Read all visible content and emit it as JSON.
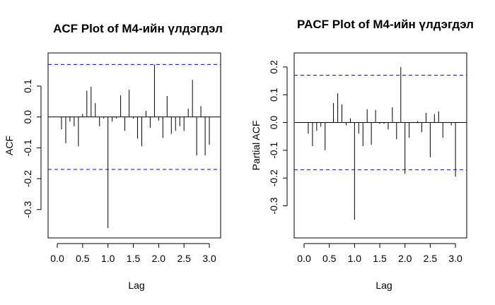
{
  "chart_data": [
    {
      "type": "bar",
      "subtype": "acf",
      "title": "ACF Plot of M4-ийн үлдэгдэл",
      "xlabel": "Lag",
      "ylabel": "ACF",
      "xlim": [
        0,
        3.083
      ],
      "ylim": [
        -0.36,
        0.18
      ],
      "xticks": [
        "0.0",
        "0.5",
        "1.0",
        "1.5",
        "2.0",
        "2.5",
        "3.0"
      ],
      "yticks": [
        "-0.3",
        "-0.2",
        "-0.1",
        "0.0",
        "0.1"
      ],
      "ci": 0.17,
      "ci_color": "#0000ff",
      "x": [
        0.083,
        0.167,
        0.25,
        0.333,
        0.417,
        0.5,
        0.583,
        0.667,
        0.75,
        0.833,
        0.917,
        1.0,
        1.083,
        1.167,
        1.25,
        1.333,
        1.417,
        1.5,
        1.583,
        1.667,
        1.75,
        1.833,
        1.917,
        2.0,
        2.083,
        2.167,
        2.25,
        2.333,
        2.417,
        2.5,
        2.583,
        2.667,
        2.75,
        2.833,
        2.917,
        3.0
      ],
      "values": [
        -0.04,
        -0.085,
        -0.015,
        -0.03,
        -0.095,
        0.01,
        0.085,
        0.098,
        0.045,
        -0.03,
        -0.005,
        -0.36,
        -0.015,
        -0.005,
        0.07,
        -0.045,
        0.088,
        -0.005,
        -0.07,
        -0.095,
        0.02,
        -0.035,
        0.17,
        -0.012,
        -0.068,
        0.068,
        -0.055,
        -0.045,
        -0.03,
        -0.045,
        0.027,
        0.12,
        -0.125,
        0.035,
        -0.125,
        -0.09
      ]
    },
    {
      "type": "bar",
      "subtype": "pacf",
      "title": "PACF Plot of M4-ийн үлдэгдэл",
      "xlabel": "Lag",
      "ylabel": "Partial ACF",
      "xlim": [
        0,
        3.083
      ],
      "ylim": [
        -0.38,
        0.22
      ],
      "xticks": [
        "0.0",
        "0.5",
        "1.0",
        "1.5",
        "2.0",
        "2.5",
        "3.0"
      ],
      "yticks": [
        "-0.3",
        "-0.2",
        "-0.1",
        "0.0",
        "0.1",
        "0.2"
      ],
      "ci": 0.17,
      "ci_color": "#0000ff",
      "x": [
        0.083,
        0.167,
        0.25,
        0.333,
        0.417,
        0.5,
        0.583,
        0.667,
        0.75,
        0.833,
        0.917,
        1.0,
        1.083,
        1.167,
        1.25,
        1.333,
        1.417,
        1.5,
        1.583,
        1.667,
        1.75,
        1.833,
        1.917,
        2.0,
        2.083,
        2.167,
        2.25,
        2.333,
        2.417,
        2.5,
        2.583,
        2.667,
        2.75,
        2.833,
        2.917,
        3.0
      ],
      "values": [
        -0.04,
        -0.085,
        -0.03,
        -0.015,
        -0.1,
        0.0,
        0.07,
        0.105,
        0.065,
        -0.01,
        0.015,
        -0.35,
        -0.04,
        -0.085,
        0.048,
        -0.08,
        0.045,
        -0.005,
        -0.005,
        -0.025,
        0.055,
        -0.06,
        0.2,
        -0.185,
        -0.055,
        0.0,
        0.005,
        -0.035,
        0.035,
        -0.125,
        0.03,
        0.04,
        -0.055,
        0.0,
        -0.01,
        -0.195
      ]
    }
  ]
}
